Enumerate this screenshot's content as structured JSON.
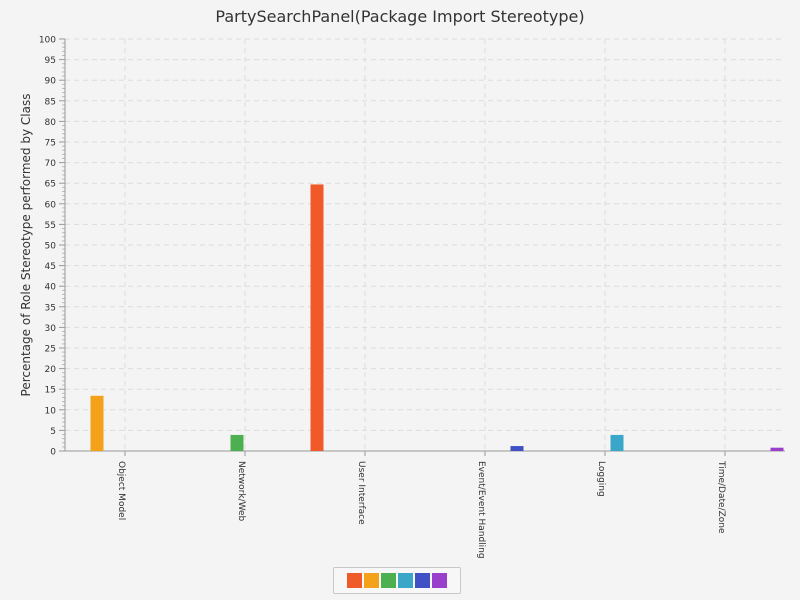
{
  "chart_data": {
    "type": "bar",
    "title": "PartySearchPanel(Package Import Stereotype)",
    "xlabel": "",
    "ylabel": "Percentage of Role Stereotype performed by Class",
    "ylim": [
      0,
      100
    ],
    "ytick_step": 5,
    "grid": true,
    "legend_position": "bottom",
    "categories": [
      "Object Model",
      "Network/Web",
      "User Interface",
      "Event/Event Handling",
      "Logging",
      "Time/Date/Zone"
    ],
    "series": [
      {
        "color": "#f05a28",
        "values": [
          0,
          0,
          64.7,
          0,
          0,
          0
        ]
      },
      {
        "color": "#f5a21b",
        "values": [
          13.4,
          0,
          0,
          0,
          0,
          0
        ]
      },
      {
        "color": "#4caf50",
        "values": [
          0,
          3.9,
          0,
          0,
          0,
          0
        ]
      },
      {
        "color": "#3aa6c8",
        "values": [
          0,
          0,
          0,
          0,
          3.9,
          0
        ]
      },
      {
        "color": "#3f51c4",
        "values": [
          0,
          0,
          0,
          1.2,
          0,
          0
        ]
      },
      {
        "color": "#9a3fcc",
        "values": [
          0,
          0,
          0,
          0,
          0,
          0.8
        ]
      }
    ]
  }
}
